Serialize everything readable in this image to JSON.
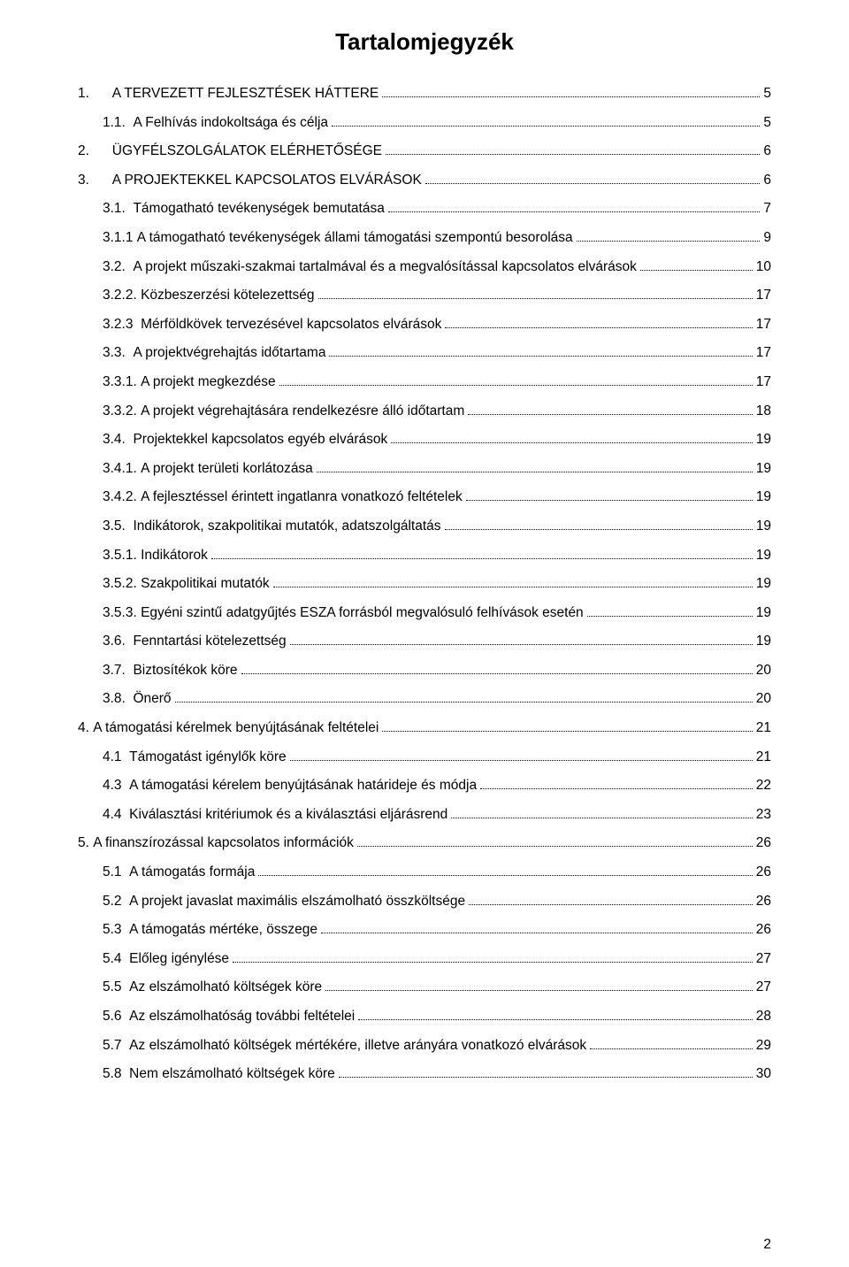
{
  "title": "Tartalomjegyzék",
  "page_number": "2",
  "background_color": "#ffffff",
  "text_color": "#000000",
  "dot_leader_color": "#000000",
  "font_family": "Arial",
  "title_fontsize": 26,
  "body_fontsize": 15.5,
  "toc": [
    {
      "number": "1.",
      "label": "A TERVEZETT FEJLESZTÉSEK HÁTTERE",
      "page": "5",
      "indent": 0,
      "gap_after_number": 6
    },
    {
      "number": "1.1.",
      "label": "A Felhívás indokoltsága és célja",
      "page": "5",
      "indent": 1,
      "gap_after_number": 2
    },
    {
      "number": "2.",
      "label": "ÜGYFÉLSZOLGÁLATOK ELÉRHETŐSÉGE",
      "page": "6",
      "indent": 0,
      "gap_after_number": 6
    },
    {
      "number": "3.",
      "label": "A PROJEKTEKKEL KAPCSOLATOS ELVÁRÁSOK",
      "page": "6",
      "indent": 0,
      "gap_after_number": 6
    },
    {
      "number": "3.1.",
      "label": "Támogatható tevékenységek bemutatása",
      "page": "7",
      "indent": 1,
      "gap_after_number": 2
    },
    {
      "number": "3.1.1",
      "label": "A támogatható tevékenységek állami támogatási szempontú besorolása",
      "page": "9",
      "indent": 1,
      "gap_after_number": 1
    },
    {
      "number": "3.2.",
      "label": "A projekt műszaki-szakmai tartalmával és a megvalósítással kapcsolatos elvárások",
      "page": "10",
      "indent": 1,
      "gap_after_number": 2
    },
    {
      "number": "3.2.2.",
      "label": "Közbeszerzési kötelezettség",
      "page": "17",
      "indent": 1,
      "gap_after_number": 1
    },
    {
      "number": "3.2.3",
      "label": "Mérföldkövek tervezésével kapcsolatos elvárások",
      "page": "17",
      "indent": 1,
      "gap_after_number": 2
    },
    {
      "number": "3.3.",
      "label": "A projektvégrehajtás időtartama",
      "page": "17",
      "indent": 1,
      "gap_after_number": 2
    },
    {
      "number": "3.3.1.",
      "label": "A projekt megkezdése",
      "page": "17",
      "indent": 1,
      "gap_after_number": 1
    },
    {
      "number": "3.3.2.",
      "label": "A projekt végrehajtására rendelkezésre álló időtartam",
      "page": "18",
      "indent": 1,
      "gap_after_number": 1
    },
    {
      "number": "3.4.",
      "label": "Projektekkel kapcsolatos egyéb elvárások",
      "page": "19",
      "indent": 1,
      "gap_after_number": 2
    },
    {
      "number": "3.4.1.",
      "label": "A projekt területi korlátozása",
      "page": "19",
      "indent": 1,
      "gap_after_number": 1
    },
    {
      "number": "3.4.2.",
      "label": "A fejlesztéssel érintett ingatlanra vonatkozó feltételek",
      "page": "19",
      "indent": 1,
      "gap_after_number": 1
    },
    {
      "number": "3.5.",
      "label": "Indikátorok, szakpolitikai mutatók, adatszolgáltatás",
      "page": "19",
      "indent": 1,
      "gap_after_number": 2
    },
    {
      "number": "3.5.1.",
      "label": "Indikátorok",
      "page": "19",
      "indent": 1,
      "gap_after_number": 1
    },
    {
      "number": "3.5.2.",
      "label": "Szakpolitikai mutatók",
      "page": "19",
      "indent": 1,
      "gap_after_number": 1
    },
    {
      "number": "3.5.3.",
      "label": "Egyéni szintű adatgyűjtés ESZA forrásból megvalósuló felhívások esetén",
      "page": "19",
      "indent": 1,
      "gap_after_number": 1
    },
    {
      "number": "3.6.",
      "label": "Fenntartási kötelezettség",
      "page": "19",
      "indent": 1,
      "gap_after_number": 2
    },
    {
      "number": "3.7.",
      "label": "Biztosítékok köre",
      "page": "20",
      "indent": 1,
      "gap_after_number": 2
    },
    {
      "number": "3.8.",
      "label": "Önerő",
      "page": "20",
      "indent": 1,
      "gap_after_number": 2
    },
    {
      "number": "4.",
      "label": "A támogatási kérelmek benyújtásának feltételei",
      "page": "21",
      "indent": 0,
      "gap_after_number": 1
    },
    {
      "number": "4.1",
      "label": "Támogatást igénylők köre",
      "page": "21",
      "indent": 1,
      "gap_after_number": 2
    },
    {
      "number": "4.3",
      "label": "A támogatási kérelem benyújtásának határideje és módja",
      "page": "22",
      "indent": 1,
      "gap_after_number": 2
    },
    {
      "number": "4.4",
      "label": "Kiválasztási kritériumok és a kiválasztási eljárásrend",
      "page": "23",
      "indent": 1,
      "gap_after_number": 2
    },
    {
      "number": "5.",
      "label": "A finanszírozással kapcsolatos információk",
      "page": "26",
      "indent": 0,
      "gap_after_number": 1
    },
    {
      "number": "5.1",
      "label": "A támogatás formája",
      "page": "26",
      "indent": 1,
      "gap_after_number": 2
    },
    {
      "number": "5.2",
      "label": "A projekt javaslat maximális elszámolható összköltsége",
      "page": "26",
      "indent": 1,
      "gap_after_number": 2
    },
    {
      "number": "5.3",
      "label": "A támogatás mértéke, összege",
      "page": "26",
      "indent": 1,
      "gap_after_number": 2
    },
    {
      "number": "5.4",
      "label": "Előleg igénylése",
      "page": "27",
      "indent": 1,
      "gap_after_number": 2
    },
    {
      "number": "5.5",
      "label": "Az elszámolható költségek köre",
      "page": "27",
      "indent": 1,
      "gap_after_number": 2
    },
    {
      "number": "5.6",
      "label": "Az elszámolhatóság további feltételei",
      "page": "28",
      "indent": 1,
      "gap_after_number": 2
    },
    {
      "number": "5.7",
      "label": "Az elszámolható költségek mértékére, illetve arányára vonatkozó elvárások",
      "page": "29",
      "indent": 1,
      "gap_after_number": 2
    },
    {
      "number": "5.8",
      "label": "Nem elszámolható költségek köre",
      "page": "30",
      "indent": 1,
      "gap_after_number": 2
    }
  ]
}
